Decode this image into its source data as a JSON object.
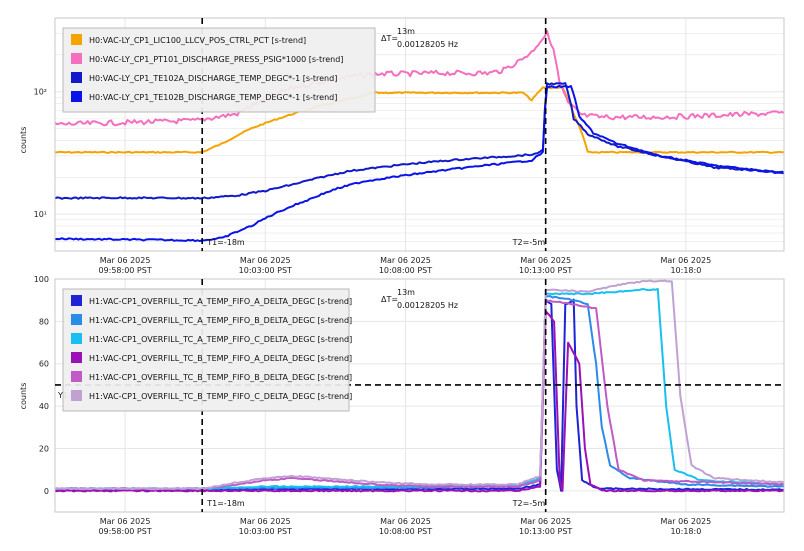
{
  "colors": {
    "background": "#ffffff",
    "grid": "#e6e6e6",
    "legend_bg": "#efefef",
    "legend_border": "#b9b9b9",
    "cursor": "#000000"
  },
  "chart_data": [
    {
      "type": "line",
      "panel": "top",
      "ylabel": "counts",
      "yscale": "log",
      "ylim": [
        5,
        400
      ],
      "yticks": [
        {
          "value": 10,
          "label": "10¹"
        },
        {
          "value": 100,
          "label": "10²"
        }
      ],
      "xlim_minutes": [
        -2.5,
        23.5
      ],
      "xticks": [
        {
          "minutes": 0,
          "line1": "Mar 06 2025",
          "line2": "09:58:00 PST"
        },
        {
          "minutes": 5,
          "line1": "Mar 06 2025",
          "line2": "10:03:00 PST"
        },
        {
          "minutes": 10,
          "line1": "Mar 06 2025",
          "line2": "10:08:00 PST"
        },
        {
          "minutes": 15,
          "line1": "Mar 06 2025",
          "line2": "10:13:00 PST"
        },
        {
          "minutes": 20,
          "line1": "Mar 06 2025",
          "line2": "10:18:0"
        }
      ],
      "cursors": [
        {
          "minutes": 2.75,
          "label": "T1=-18m"
        },
        {
          "minutes": 15.0,
          "label": "T2=-5m"
        }
      ],
      "delta": {
        "label": "ΔT=",
        "value1": "13m",
        "value2": "0.00128205 Hz"
      },
      "legend": "top-left",
      "grid": true,
      "series": [
        {
          "name": "H0:VAC-LY_CP1_LIC100_LLCV_POS_CTRL_PCT [s-trend]",
          "color": "#f5a300",
          "points": [
            [
              -2.5,
              32
            ],
            [
              2.75,
              32
            ],
            [
              3.5,
              38
            ],
            [
              4.5,
              50
            ],
            [
              6,
              66
            ],
            [
              7.5,
              82
            ],
            [
              8.5,
              92
            ],
            [
              8.8,
              98
            ],
            [
              14.2,
              98
            ],
            [
              14.5,
              85
            ],
            [
              14.9,
              108
            ],
            [
              15.6,
              108
            ],
            [
              16,
              65
            ],
            [
              16.5,
              32
            ],
            [
              23.5,
              32
            ]
          ]
        },
        {
          "name": "H0:VAC-LY_CP1_PT101_DISCHARGE_PRESS_PSIG*1000 [s-trend]",
          "color": "#f46fbf",
          "points": [
            [
              -2.5,
              54
            ],
            [
              0,
              56
            ],
            [
              2.5,
              58
            ],
            [
              4,
              66
            ],
            [
              5,
              88
            ],
            [
              6,
              108
            ],
            [
              7,
              120
            ],
            [
              8,
              132
            ],
            [
              9,
              140
            ],
            [
              10,
              140
            ],
            [
              11,
              142
            ],
            [
              12,
              142
            ],
            [
              13,
              142
            ],
            [
              13.5,
              150
            ],
            [
              14,
              175
            ],
            [
              14.5,
              210
            ],
            [
              14.9,
              275
            ],
            [
              15.05,
              300
            ],
            [
              15.2,
              250
            ],
            [
              15.5,
              115
            ],
            [
              15.8,
              80
            ],
            [
              16.3,
              64
            ],
            [
              17,
              62
            ],
            [
              19,
              62
            ],
            [
              21,
              64
            ],
            [
              23.5,
              67
            ]
          ]
        },
        {
          "name": "H0:VAC-LY_CP1_TE102A_DISCHARGE_TEMP_DEGC*-1 [s-trend]",
          "color": "#1219c8",
          "points": [
            [
              -2.5,
              13.5
            ],
            [
              0,
              13.6
            ],
            [
              2.75,
              13.5
            ],
            [
              4,
              14.2
            ],
            [
              5,
              15.5
            ],
            [
              6,
              17.5
            ],
            [
              7,
              20
            ],
            [
              8,
              22.5
            ],
            [
              9,
              24
            ],
            [
              10,
              25.5
            ],
            [
              11,
              26.8
            ],
            [
              12,
              28
            ],
            [
              13,
              29
            ],
            [
              14,
              30
            ],
            [
              14.7,
              31
            ],
            [
              14.9,
              34
            ],
            [
              15.05,
              116
            ],
            [
              15.7,
              116
            ],
            [
              16,
              60
            ],
            [
              16.5,
              45
            ],
            [
              17.5,
              36
            ],
            [
              19,
              30
            ],
            [
              21,
              24
            ],
            [
              23.5,
              22
            ]
          ]
        },
        {
          "name": "H0:VAC-LY_CP1_TE102B_DISCHARGE_TEMP_DEGC*-1 [s-trend]",
          "color": "#0a14e8",
          "points": [
            [
              -2.5,
              6.3
            ],
            [
              0,
              6.2
            ],
            [
              2.75,
              6.1
            ],
            [
              3.5,
              6.4
            ],
            [
              4.5,
              8
            ],
            [
              5.5,
              10.5
            ],
            [
              6.5,
              13
            ],
            [
              7.5,
              16
            ],
            [
              8.5,
              18.5
            ],
            [
              9.5,
              20
            ],
            [
              10.5,
              21.5
            ],
            [
              11.5,
              23
            ],
            [
              12.5,
              24.5
            ],
            [
              13.5,
              26
            ],
            [
              14.5,
              27.5
            ],
            [
              14.9,
              32
            ],
            [
              15.05,
              110
            ],
            [
              15.9,
              110
            ],
            [
              16.2,
              62
            ],
            [
              16.7,
              46
            ],
            [
              17.5,
              38
            ],
            [
              19,
              30
            ],
            [
              21,
              25
            ],
            [
              23.5,
              21.5
            ]
          ]
        }
      ]
    },
    {
      "type": "line",
      "panel": "bottom",
      "ylabel": "counts",
      "ylim": [
        -10,
        100
      ],
      "yticks": [
        0,
        20,
        40,
        60,
        80,
        100
      ],
      "xlim_minutes": [
        -2.5,
        23.5
      ],
      "xticks": [
        {
          "minutes": 0,
          "line1": "Mar 06 2025",
          "line2": "09:58:00 PST"
        },
        {
          "minutes": 5,
          "line1": "Mar 06 2025",
          "line2": "10:03:00 PST"
        },
        {
          "minutes": 10,
          "line1": "Mar 06 2025",
          "line2": "10:08:00 PST"
        },
        {
          "minutes": 15,
          "line1": "Mar 06 2025",
          "line2": "10:13:00 PST"
        },
        {
          "minutes": 20,
          "line1": "Mar 06 2025",
          "line2": "10:18:0"
        }
      ],
      "cursors": [
        {
          "minutes": 2.75,
          "label": "T1=-18m"
        },
        {
          "minutes": 15.0,
          "label": "T2=-5m"
        }
      ],
      "hcursor": {
        "value": 50,
        "label": "Y1="
      },
      "delta": {
        "label": "ΔT=",
        "value1": "13m",
        "value2": "0.00128205 Hz"
      },
      "legend": "top-left",
      "grid": true,
      "series": [
        {
          "name": "H1:VAC-CP1_OVERFILL_TC_A_TEMP_FIFO_A_DELTA_DEGC [s-trend]",
          "color": "#1f23d6",
          "points": [
            [
              -2.5,
              0.5
            ],
            [
              2.75,
              0.5
            ],
            [
              5,
              0.8
            ],
            [
              10,
              0.8
            ],
            [
              14,
              1
            ],
            [
              14.8,
              3
            ],
            [
              15,
              90
            ],
            [
              15.2,
              88
            ],
            [
              15.4,
              10
            ],
            [
              15.55,
              0
            ],
            [
              15.7,
              88
            ],
            [
              16.0,
              90
            ],
            [
              16.1,
              40
            ],
            [
              16.3,
              5
            ],
            [
              16.7,
              2
            ],
            [
              17,
              1
            ],
            [
              23.5,
              0.5
            ]
          ]
        },
        {
          "name": "H1:VAC-CP1_OVERFILL_TC_A_TEMP_FIFO_B_DELTA_DEGC [s-trend]",
          "color": "#2b8be8",
          "points": [
            [
              -2.5,
              1
            ],
            [
              2.75,
              1
            ],
            [
              5,
              1.5
            ],
            [
              10,
              1.5
            ],
            [
              14,
              2
            ],
            [
              14.8,
              5
            ],
            [
              15,
              92
            ],
            [
              16,
              90
            ],
            [
              16.5,
              88
            ],
            [
              16.8,
              60
            ],
            [
              17,
              30
            ],
            [
              17.3,
              12
            ],
            [
              18,
              6
            ],
            [
              20,
              3
            ],
            [
              23.5,
              2
            ]
          ]
        },
        {
          "name": "H1:VAC-CP1_OVERFILL_TC_A_TEMP_FIFO_C_DELTA_DEGC [s-trend]",
          "color": "#19bff0",
          "points": [
            [
              -2.5,
              1
            ],
            [
              2.75,
              1
            ],
            [
              5,
              2
            ],
            [
              10,
              2
            ],
            [
              14,
              2.5
            ],
            [
              14.8,
              6
            ],
            [
              15,
              93
            ],
            [
              16.5,
              93
            ],
            [
              17.5,
              94
            ],
            [
              18.5,
              95
            ],
            [
              19,
              95
            ],
            [
              19.3,
              40
            ],
            [
              19.6,
              10
            ],
            [
              20.5,
              5
            ],
            [
              23.5,
              3
            ]
          ]
        },
        {
          "name": "H1:VAC-CP1_OVERFILL_TC_B_TEMP_FIFO_A_DELTA_DEGC [s-trend]",
          "color": "#9a11b4",
          "points": [
            [
              -2.5,
              0
            ],
            [
              2.75,
              0
            ],
            [
              5,
              0
            ],
            [
              10,
              0
            ],
            [
              14,
              0
            ],
            [
              14.8,
              2
            ],
            [
              15,
              85
            ],
            [
              15.3,
              80
            ],
            [
              15.5,
              5
            ],
            [
              15.6,
              0
            ],
            [
              15.8,
              70
            ],
            [
              16.0,
              65
            ],
            [
              16.2,
              60
            ],
            [
              16.4,
              20
            ],
            [
              16.6,
              3
            ],
            [
              17,
              0
            ],
            [
              23.5,
              0
            ]
          ]
        },
        {
          "name": "H1:VAC-CP1_OVERFILL_TC_B_TEMP_FIFO_B_DELTA_DEGC [s-trend]",
          "color": "#c05ac6",
          "points": [
            [
              -2.5,
              1
            ],
            [
              2.75,
              1
            ],
            [
              4,
              3
            ],
            [
              5,
              5
            ],
            [
              6,
              6
            ],
            [
              7,
              5
            ],
            [
              9,
              3
            ],
            [
              11,
              2
            ],
            [
              13,
              2
            ],
            [
              14,
              2
            ],
            [
              14.8,
              5
            ],
            [
              15,
              90
            ],
            [
              16,
              88
            ],
            [
              16.8,
              86
            ],
            [
              17.2,
              40
            ],
            [
              17.6,
              10
            ],
            [
              18.5,
              5
            ],
            [
              23.5,
              3
            ]
          ]
        },
        {
          "name": "H1:VAC-CP1_OVERFILL_TC_B_TEMP_FIFO_C_DELTA_DEGC [s-trend]",
          "color": "#c0a1d2",
          "points": [
            [
              -2.5,
              1
            ],
            [
              2.75,
              1
            ],
            [
              4,
              4
            ],
            [
              5,
              6
            ],
            [
              6,
              7
            ],
            [
              7,
              6
            ],
            [
              9,
              4
            ],
            [
              11,
              3
            ],
            [
              13,
              3
            ],
            [
              14,
              3
            ],
            [
              14.8,
              7
            ],
            [
              15,
              95
            ],
            [
              16.5,
              94
            ],
            [
              17.5,
              97
            ],
            [
              18.5,
              99
            ],
            [
              19.5,
              99
            ],
            [
              19.8,
              45
            ],
            [
              20.2,
              12
            ],
            [
              21,
              6
            ],
            [
              23.5,
              4
            ]
          ]
        }
      ]
    }
  ]
}
